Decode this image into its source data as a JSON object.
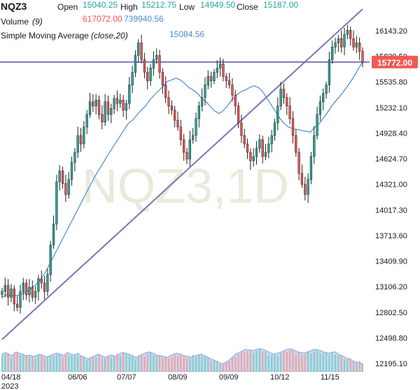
{
  "legend": {
    "symbol": "NQZ3",
    "open_label": "Open",
    "open": "15040.25",
    "high_label": "High",
    "high": "15212.75",
    "low_label": "Low",
    "low": "14949.50",
    "close_label": "Close",
    "close": "15187.00",
    "volume_label": "Volume",
    "volume_param": "(9)",
    "volume_value": "617072.00",
    "volume_ma": "739940.56",
    "sma_label": "Simple Moving Average",
    "sma_param": "(close,20)",
    "sma_value": "15084.56"
  },
  "watermark": "NQZ3,1D",
  "price_badge": "15772.00",
  "colors": {
    "up": "#26a69a",
    "down": "#ef5350",
    "sma": "#4a8bd6",
    "trendline": "#7b74b5",
    "volume_area": "#c9d7f2",
    "badge": "#f05a52"
  },
  "chart_data": {
    "type": "candlestick",
    "ylim": [
      12100,
      16300
    ],
    "yticks": [
      "16143.20",
      "15839.50",
      "15535.80",
      "15232.10",
      "14928.40",
      "14624.70",
      "14321.00",
      "14017.30",
      "13713.60",
      "13409.90",
      "13106.20",
      "12802.50",
      "12498.80",
      "12195.10"
    ],
    "xticks": [
      {
        "label": "04/18",
        "sub": "2023"
      },
      {
        "label": "06/06",
        "sub": ""
      },
      {
        "label": "07/07",
        "sub": ""
      },
      {
        "label": "08/09",
        "sub": ""
      },
      {
        "label": "09/09",
        "sub": ""
      },
      {
        "label": "10/12",
        "sub": ""
      },
      {
        "label": "11/15",
        "sub": ""
      }
    ],
    "close_path": [
      13050,
      13120,
      12980,
      13080,
      12900,
      12860,
      13050,
      13150,
      13010,
      13100,
      12980,
      13050,
      13200,
      13150,
      13050,
      13250,
      13600,
      13850,
      14350,
      14480,
      14330,
      14200,
      14380,
      14580,
      14700,
      14900,
      14800,
      15000,
      15150,
      15300,
      15250,
      15320,
      15150,
      15060,
      15300,
      15150,
      15220,
      15340,
      15280,
      15320,
      15200,
      15280,
      15500,
      15650,
      15850,
      16000,
      15800,
      15650,
      15550,
      15700,
      15800,
      15850,
      15650,
      15500,
      15350,
      15250,
      15200,
      15080,
      15000,
      14850,
      14700,
      14620,
      14850,
      14900,
      15100,
      15250,
      15350,
      15500,
      15600,
      15550,
      15650,
      15700,
      15750,
      15600,
      15550,
      15500,
      15380,
      15250,
      15050,
      14900,
      14800,
      14700,
      14600,
      14650,
      14750,
      14850,
      14650,
      14700,
      14800,
      14900,
      15050,
      15250,
      15450,
      15350,
      15250,
      15100,
      14900,
      14700,
      14450,
      14320,
      14200,
      14380,
      14650,
      14900,
      15150,
      15300,
      15400,
      15500,
      15800,
      15950,
      16000,
      16050,
      15950,
      16100,
      16150,
      16050,
      15950,
      16000,
      15900,
      15772
    ],
    "sma_line": [
      12980,
      13010,
      13000,
      13000,
      13010,
      13030,
      13060,
      13100,
      13140,
      13200,
      13280,
      13380,
      13480,
      13580,
      13680,
      13780,
      13880,
      13980,
      14080,
      14180,
      14280,
      14380,
      14470,
      14550,
      14640,
      14720,
      14800,
      14880,
      14960,
      15040,
      15080,
      15140,
      15200,
      15250,
      15320,
      15380,
      15430,
      15480,
      15540,
      15560,
      15580,
      15560,
      15520,
      15470,
      15440,
      15400,
      15340,
      15300,
      15240,
      15190,
      15160,
      15200,
      15260,
      15330,
      15380,
      15420,
      15440,
      15470,
      15490,
      15470,
      15420,
      15340,
      15260,
      15180,
      15100,
      15040,
      15000,
      14980,
      14970,
      14960,
      14950,
      14940,
      15000,
      15040,
      15110,
      15180,
      15260,
      15320,
      15380,
      15450,
      15520,
      15600,
      15690,
      15770
    ],
    "trendline": {
      "from": {
        "bar": 0,
        "value": 12480
      },
      "to": {
        "bar": 119,
        "value": 16400
      }
    },
    "horizontal_line": 15772,
    "volume_area_level": [
      0.55,
      0.6,
      0.55,
      0.5,
      0.62,
      0.58,
      0.55,
      0.5,
      0.52,
      0.48,
      0.5,
      0.55,
      0.5,
      0.46,
      0.5,
      0.56,
      0.58,
      0.55,
      0.5,
      0.6,
      0.55,
      0.52,
      0.58,
      0.5,
      0.45,
      0.4,
      0.45,
      0.5,
      0.55,
      0.5,
      0.45,
      0.5,
      0.52,
      0.48,
      0.55,
      0.6,
      0.58,
      0.55,
      0.5,
      0.45,
      0.5,
      0.55,
      0.6,
      0.62,
      0.58,
      0.52,
      0.5,
      0.48,
      0.45,
      0.5,
      0.55,
      0.58,
      0.55,
      0.5,
      0.48,
      0.45,
      0.5,
      0.52,
      0.55,
      0.5,
      0.45,
      0.4,
      0.35,
      0.3,
      0.25,
      0.28,
      0.35,
      0.45,
      0.55,
      0.6,
      0.65,
      0.7,
      0.68,
      0.66,
      0.7,
      0.72,
      0.7,
      0.65,
      0.6,
      0.55,
      0.58,
      0.6,
      0.65,
      0.7,
      0.72,
      0.68,
      0.62,
      0.6,
      0.58,
      0.62,
      0.66,
      0.7,
      0.68,
      0.65,
      0.6,
      0.58,
      0.6,
      0.62,
      0.55,
      0.5,
      0.45,
      0.4,
      0.35,
      0.3,
      0.28,
      0.25
    ]
  }
}
